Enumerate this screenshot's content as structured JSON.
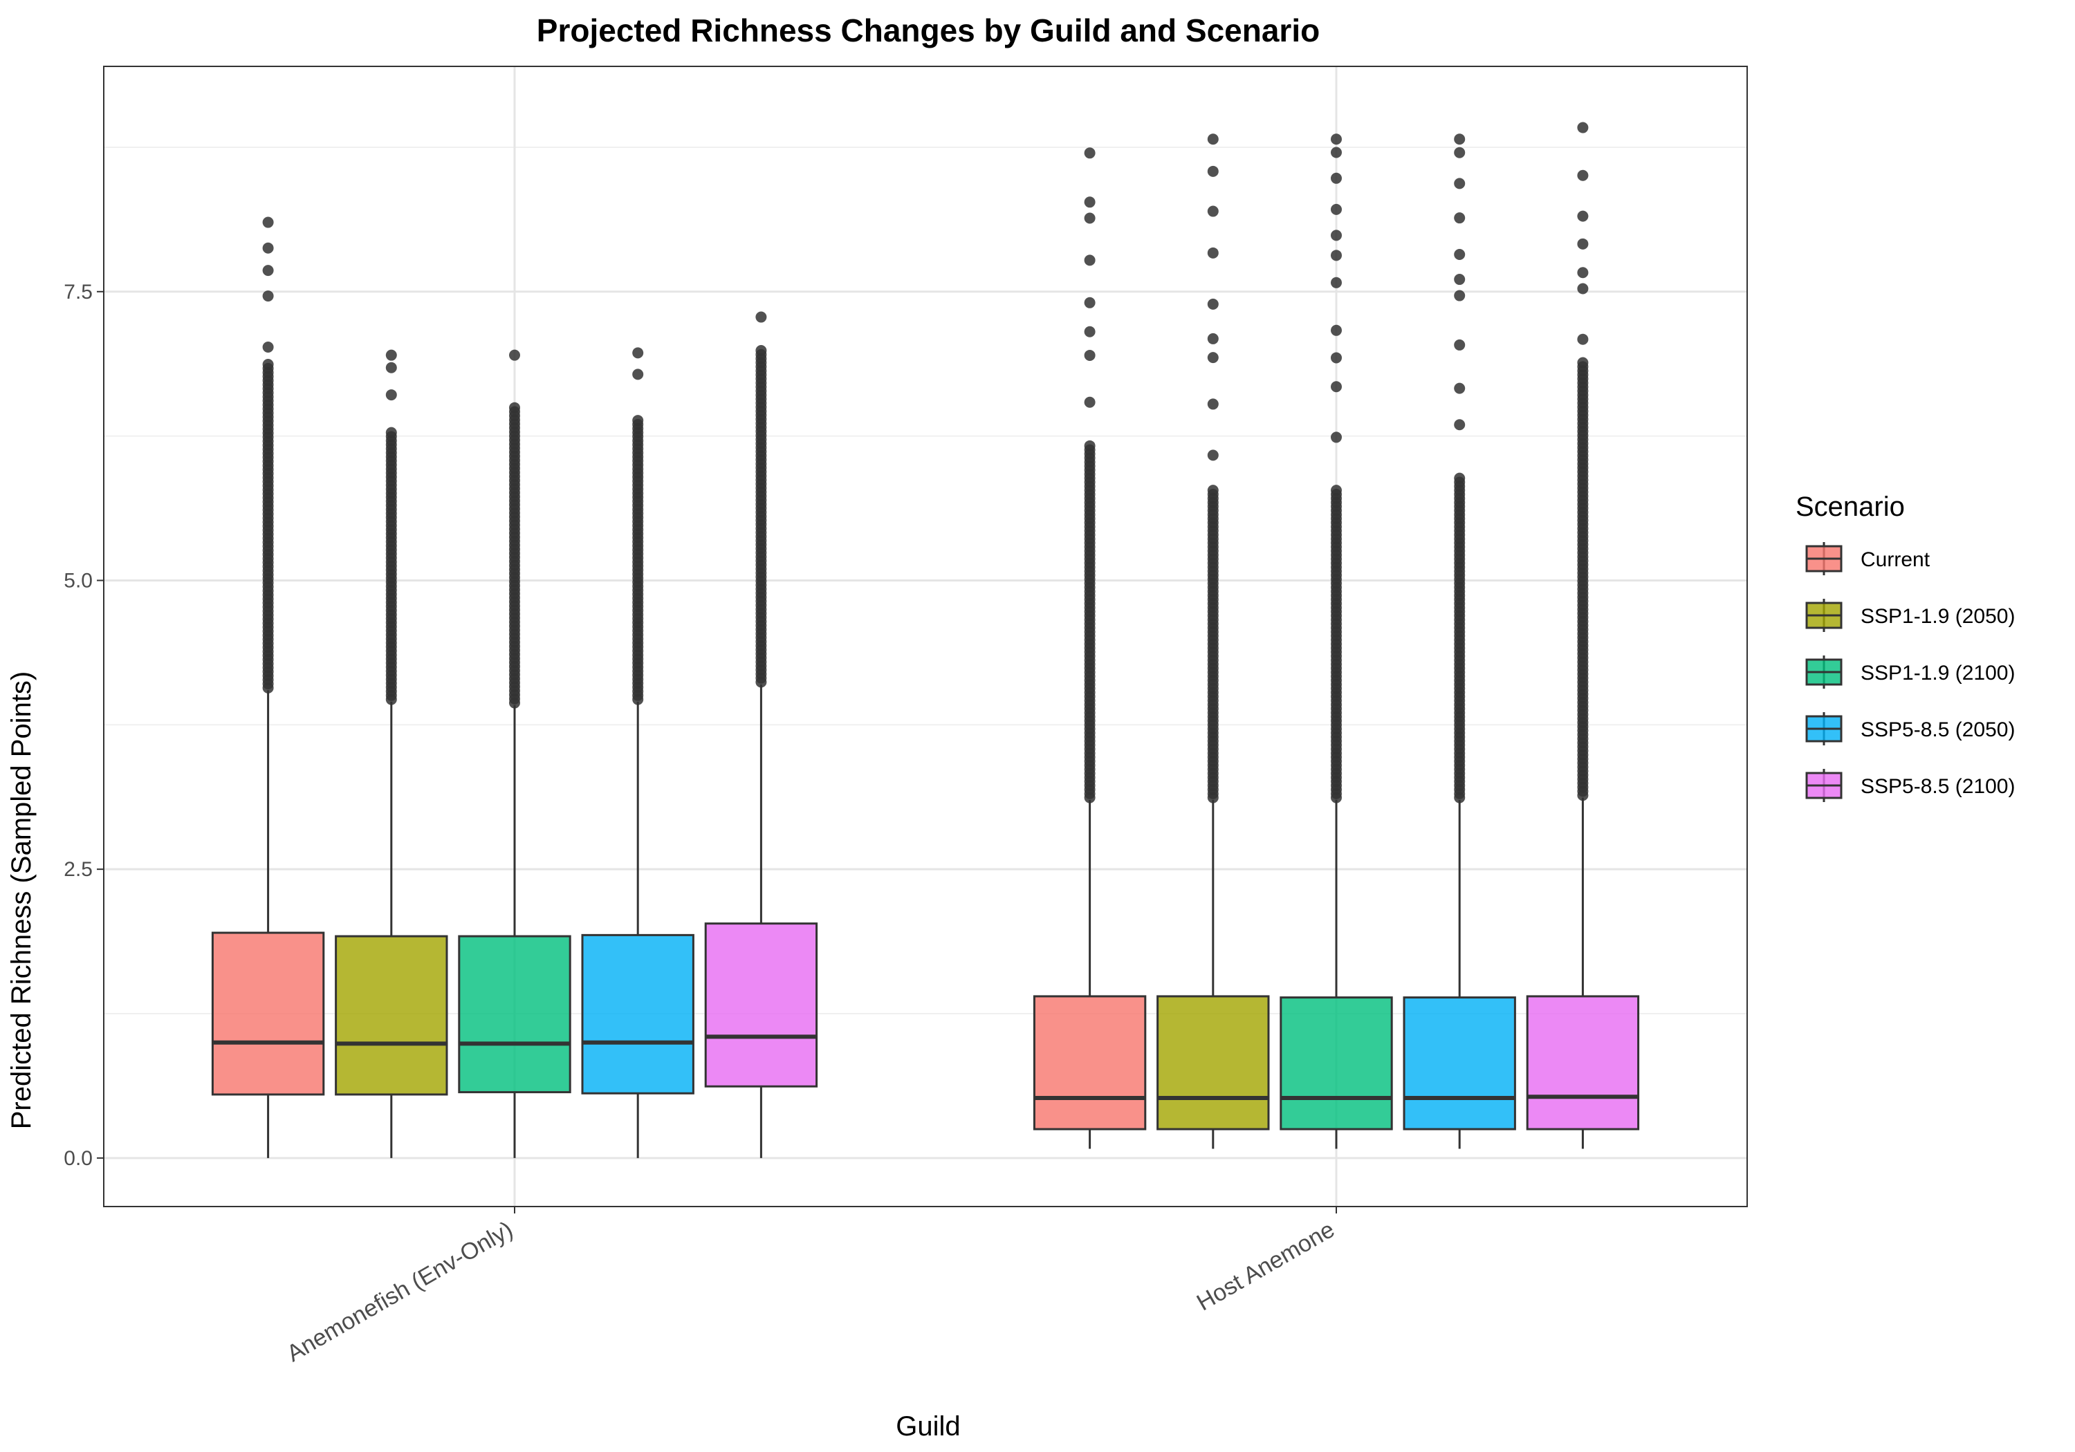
{
  "chart_data": {
    "type": "boxplot",
    "title": "Projected Richness Changes by Guild and Scenario",
    "xlabel": "Guild",
    "ylabel": "Predicted Richness (Sampled Points)",
    "ylim": [
      -0.42,
      9.45
    ],
    "yticks": [
      0.0,
      2.5,
      5.0,
      7.5
    ],
    "ytick_labels": [
      "0.0",
      "2.5",
      "5.0",
      "7.5"
    ],
    "grid": true,
    "legend": {
      "title": "Scenario",
      "placement": "right"
    },
    "categories": [
      "Anemonefish (Env-Only)",
      "Host Anemone"
    ],
    "series": [
      {
        "name": "Current",
        "color": "#F8766D",
        "boxes": [
          {
            "whisker_low": 0.0,
            "q1": 0.55,
            "median": 1.0,
            "q3": 1.95,
            "whisker_high": 4.05,
            "outlier_max": 8.1,
            "outlier_dense_top": 6.9
          },
          {
            "whisker_low": 0.08,
            "q1": 0.25,
            "median": 0.52,
            "q3": 1.4,
            "whisker_high": 3.1,
            "outlier_max": 8.7,
            "outlier_dense_top": 6.2
          }
        ]
      },
      {
        "name": "SSP1-1.9 (2050)",
        "color": "#A3A500",
        "boxes": [
          {
            "whisker_low": 0.0,
            "q1": 0.55,
            "median": 0.99,
            "q3": 1.92,
            "whisker_high": 3.95,
            "outlier_max": 6.95,
            "outlier_dense_top": 6.3
          },
          {
            "whisker_low": 0.08,
            "q1": 0.25,
            "median": 0.52,
            "q3": 1.4,
            "whisker_high": 3.1,
            "outlier_max": 8.82,
            "outlier_dense_top": 5.8
          }
        ]
      },
      {
        "name": "SSP1-1.9 (2100)",
        "color": "#00BF7D",
        "boxes": [
          {
            "whisker_low": 0.0,
            "q1": 0.57,
            "median": 0.99,
            "q3": 1.92,
            "whisker_high": 3.92,
            "outlier_max": 6.95,
            "outlier_dense_top": 6.5
          },
          {
            "whisker_low": 0.08,
            "q1": 0.25,
            "median": 0.52,
            "q3": 1.39,
            "whisker_high": 3.1,
            "outlier_max": 8.82,
            "outlier_dense_top": 5.8
          }
        ]
      },
      {
        "name": "SSP5-8.5 (2050)",
        "color": "#00B0F6",
        "boxes": [
          {
            "whisker_low": 0.0,
            "q1": 0.56,
            "median": 1.0,
            "q3": 1.93,
            "whisker_high": 3.95,
            "outlier_max": 6.97,
            "outlier_dense_top": 6.4
          },
          {
            "whisker_low": 0.08,
            "q1": 0.25,
            "median": 0.52,
            "q3": 1.39,
            "whisker_high": 3.1,
            "outlier_max": 8.82,
            "outlier_dense_top": 5.9
          }
        ]
      },
      {
        "name": "SSP5-8.5 (2100)",
        "color": "#E76BF3",
        "boxes": [
          {
            "whisker_low": 0.0,
            "q1": 0.62,
            "median": 1.05,
            "q3": 2.03,
            "whisker_high": 4.1,
            "outlier_max": 7.28,
            "outlier_dense_top": 7.0
          },
          {
            "whisker_low": 0.08,
            "q1": 0.25,
            "median": 0.53,
            "q3": 1.4,
            "whisker_high": 3.12,
            "outlier_max": 8.92,
            "outlier_dense_top": 6.9
          }
        ]
      }
    ]
  }
}
